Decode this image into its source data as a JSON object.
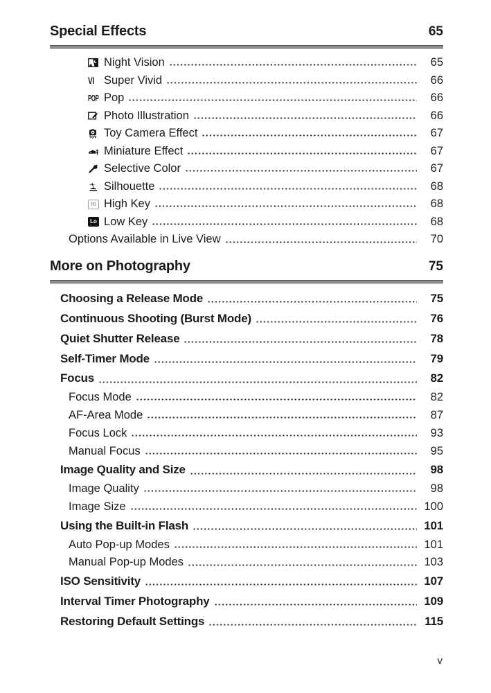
{
  "page": {
    "footer_page_number": "v"
  },
  "colors": {
    "text": "#1b1b1d",
    "rule": "#8f8f8f",
    "leader_dots": "#323232"
  },
  "sections": [
    {
      "title": "Special Effects",
      "page": "65",
      "entries": [
        {
          "level": 3,
          "icon": "night-vision-icon",
          "label": "Night Vision",
          "page": "65"
        },
        {
          "level": 3,
          "icon": "super-vivid-icon",
          "label": "Super Vivid",
          "page": "66"
        },
        {
          "level": 3,
          "icon": "pop-icon",
          "label": "Pop",
          "page": "66"
        },
        {
          "level": 3,
          "icon": "photo-illustration-icon",
          "label": "Photo Illustration",
          "page": "66"
        },
        {
          "level": 3,
          "icon": "toy-camera-icon",
          "label": "Toy Camera Effect",
          "page": "67"
        },
        {
          "level": 3,
          "icon": "miniature-effect-icon",
          "label": "Miniature Effect",
          "page": "67"
        },
        {
          "level": 3,
          "icon": "selective-color-icon",
          "label": "Selective Color",
          "page": "67"
        },
        {
          "level": 3,
          "icon": "silhouette-icon",
          "label": "Silhouette",
          "page": "68"
        },
        {
          "level": 3,
          "icon": "high-key-icon",
          "label": "High Key",
          "page": "68"
        },
        {
          "level": 3,
          "icon": "low-key-icon",
          "label": "Low Key",
          "page": "68"
        },
        {
          "level": 2,
          "icon": null,
          "label": "Options Available in Live View",
          "page": "70"
        }
      ]
    },
    {
      "title": "More on Photography",
      "page": "75",
      "entries": [
        {
          "level": 1,
          "icon": null,
          "label": "Choosing a Release Mode",
          "page": "75"
        },
        {
          "level": 1,
          "icon": null,
          "label": "Continuous Shooting (Burst Mode)",
          "page": "76"
        },
        {
          "level": 1,
          "icon": null,
          "label": "Quiet Shutter Release",
          "page": "78"
        },
        {
          "level": 1,
          "icon": null,
          "label": "Self-Timer Mode",
          "page": "79"
        },
        {
          "level": 1,
          "icon": null,
          "label": "Focus",
          "page": "82"
        },
        {
          "level": 2,
          "icon": null,
          "label": "Focus Mode",
          "page": "82"
        },
        {
          "level": 2,
          "icon": null,
          "label": "AF-Area Mode",
          "page": "87"
        },
        {
          "level": 2,
          "icon": null,
          "label": "Focus Lock",
          "page": "93"
        },
        {
          "level": 2,
          "icon": null,
          "label": "Manual Focus",
          "page": "95"
        },
        {
          "level": 1,
          "icon": null,
          "label": "Image Quality and Size",
          "page": "98"
        },
        {
          "level": 2,
          "icon": null,
          "label": "Image Quality",
          "page": "98"
        },
        {
          "level": 2,
          "icon": null,
          "label": "Image Size",
          "page": "100"
        },
        {
          "level": 1,
          "icon": null,
          "label": "Using the Built-in Flash",
          "page": "101"
        },
        {
          "level": 2,
          "icon": null,
          "label": "Auto Pop-up Modes",
          "page": "101"
        },
        {
          "level": 2,
          "icon": null,
          "label": "Manual Pop-up Modes",
          "page": "103"
        },
        {
          "level": 1,
          "icon": null,
          "label": "ISO Sensitivity",
          "page": "107"
        },
        {
          "level": 1,
          "icon": null,
          "label": "Interval Timer Photography",
          "page": "109"
        },
        {
          "level": 1,
          "icon": null,
          "label": "Restoring Default Settings",
          "page": "115"
        }
      ]
    }
  ]
}
